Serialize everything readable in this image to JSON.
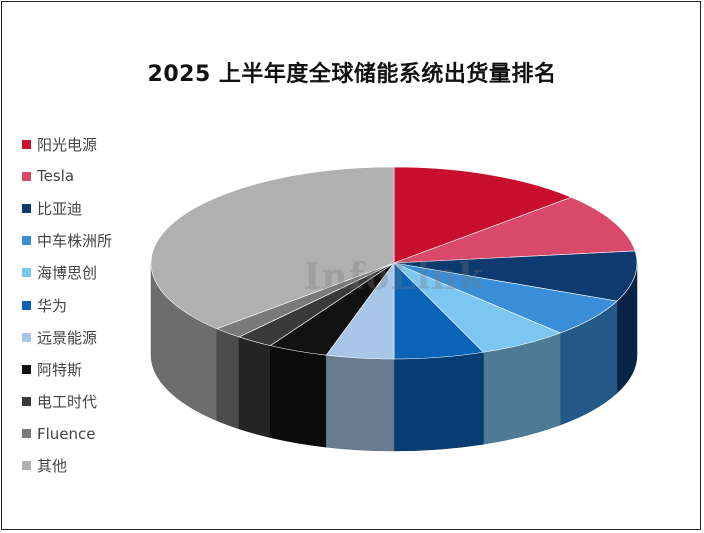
{
  "chart_data": {
    "type": "pie",
    "title": "2025 上半年度全球储能系统出货量排名",
    "categories": [
      "阳光电源",
      "Tesla",
      "比亚迪",
      "中车株洲所",
      "海博思创",
      "华为",
      "远景能源",
      "阿特斯",
      "电工时代",
      "Fluence",
      "其他"
    ],
    "values": [
      13,
      10,
      8.5,
      6.5,
      6,
      6,
      4.5,
      4,
      2.5,
      2,
      37
    ],
    "colors": [
      "#c8102e",
      "#d94a6a",
      "#0d3b70",
      "#3a8ed8",
      "#7cc6f2",
      "#0b63b8",
      "#a8c6e8",
      "#111111",
      "#3a3a3a",
      "#7a7a7a",
      "#b0b0b0"
    ],
    "legend_position": "left",
    "watermark": "InfoLink"
  }
}
